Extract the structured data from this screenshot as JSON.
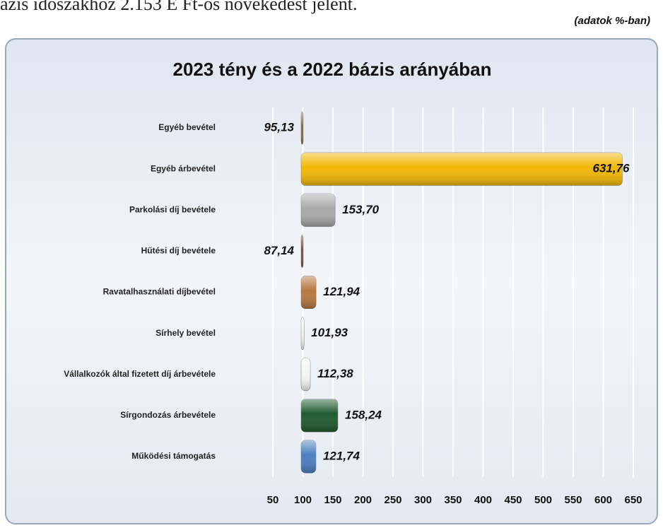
{
  "context_text": "ázis időszakhoz 2.153 E Ft-os növekedést jelent.",
  "chart_data": {
    "type": "hbar",
    "title": "2023 tény és a 2022 bázis arányában",
    "note": "(adatok %-ban)",
    "categories": [
      "Egyéb bevétel",
      "Egyéb árbevétel",
      "Parkolási díj bevétele",
      "Hűtési díj bevétele",
      "Ravatalhasználati díjbevétel",
      "Sírhely bevétel",
      "Vállalkozók által fizetett díj árbevétele",
      "Sírgondozás árbevétele",
      "Működési támogatás"
    ],
    "values": [
      95.13,
      631.76,
      153.7,
      87.14,
      121.94,
      101.93,
      112.38,
      158.24,
      121.74
    ],
    "value_labels": [
      "95,13",
      "631,76",
      "153,70",
      "87,14",
      "121,94",
      "101,93",
      "112,38",
      "158,24",
      "121,74"
    ],
    "colors": [
      "#8a6a4a",
      "#f2b705",
      "#a9a9a9",
      "#7a4a3a",
      "#b7773f",
      "#f4f4f4",
      "#f4f4f4",
      "#1f5a2e",
      "#4a7fc0"
    ],
    "xlim": [
      50,
      650
    ],
    "xticks": [
      50,
      100,
      150,
      200,
      250,
      300,
      350,
      400,
      450,
      500,
      550,
      600,
      650
    ],
    "grid": true
  }
}
